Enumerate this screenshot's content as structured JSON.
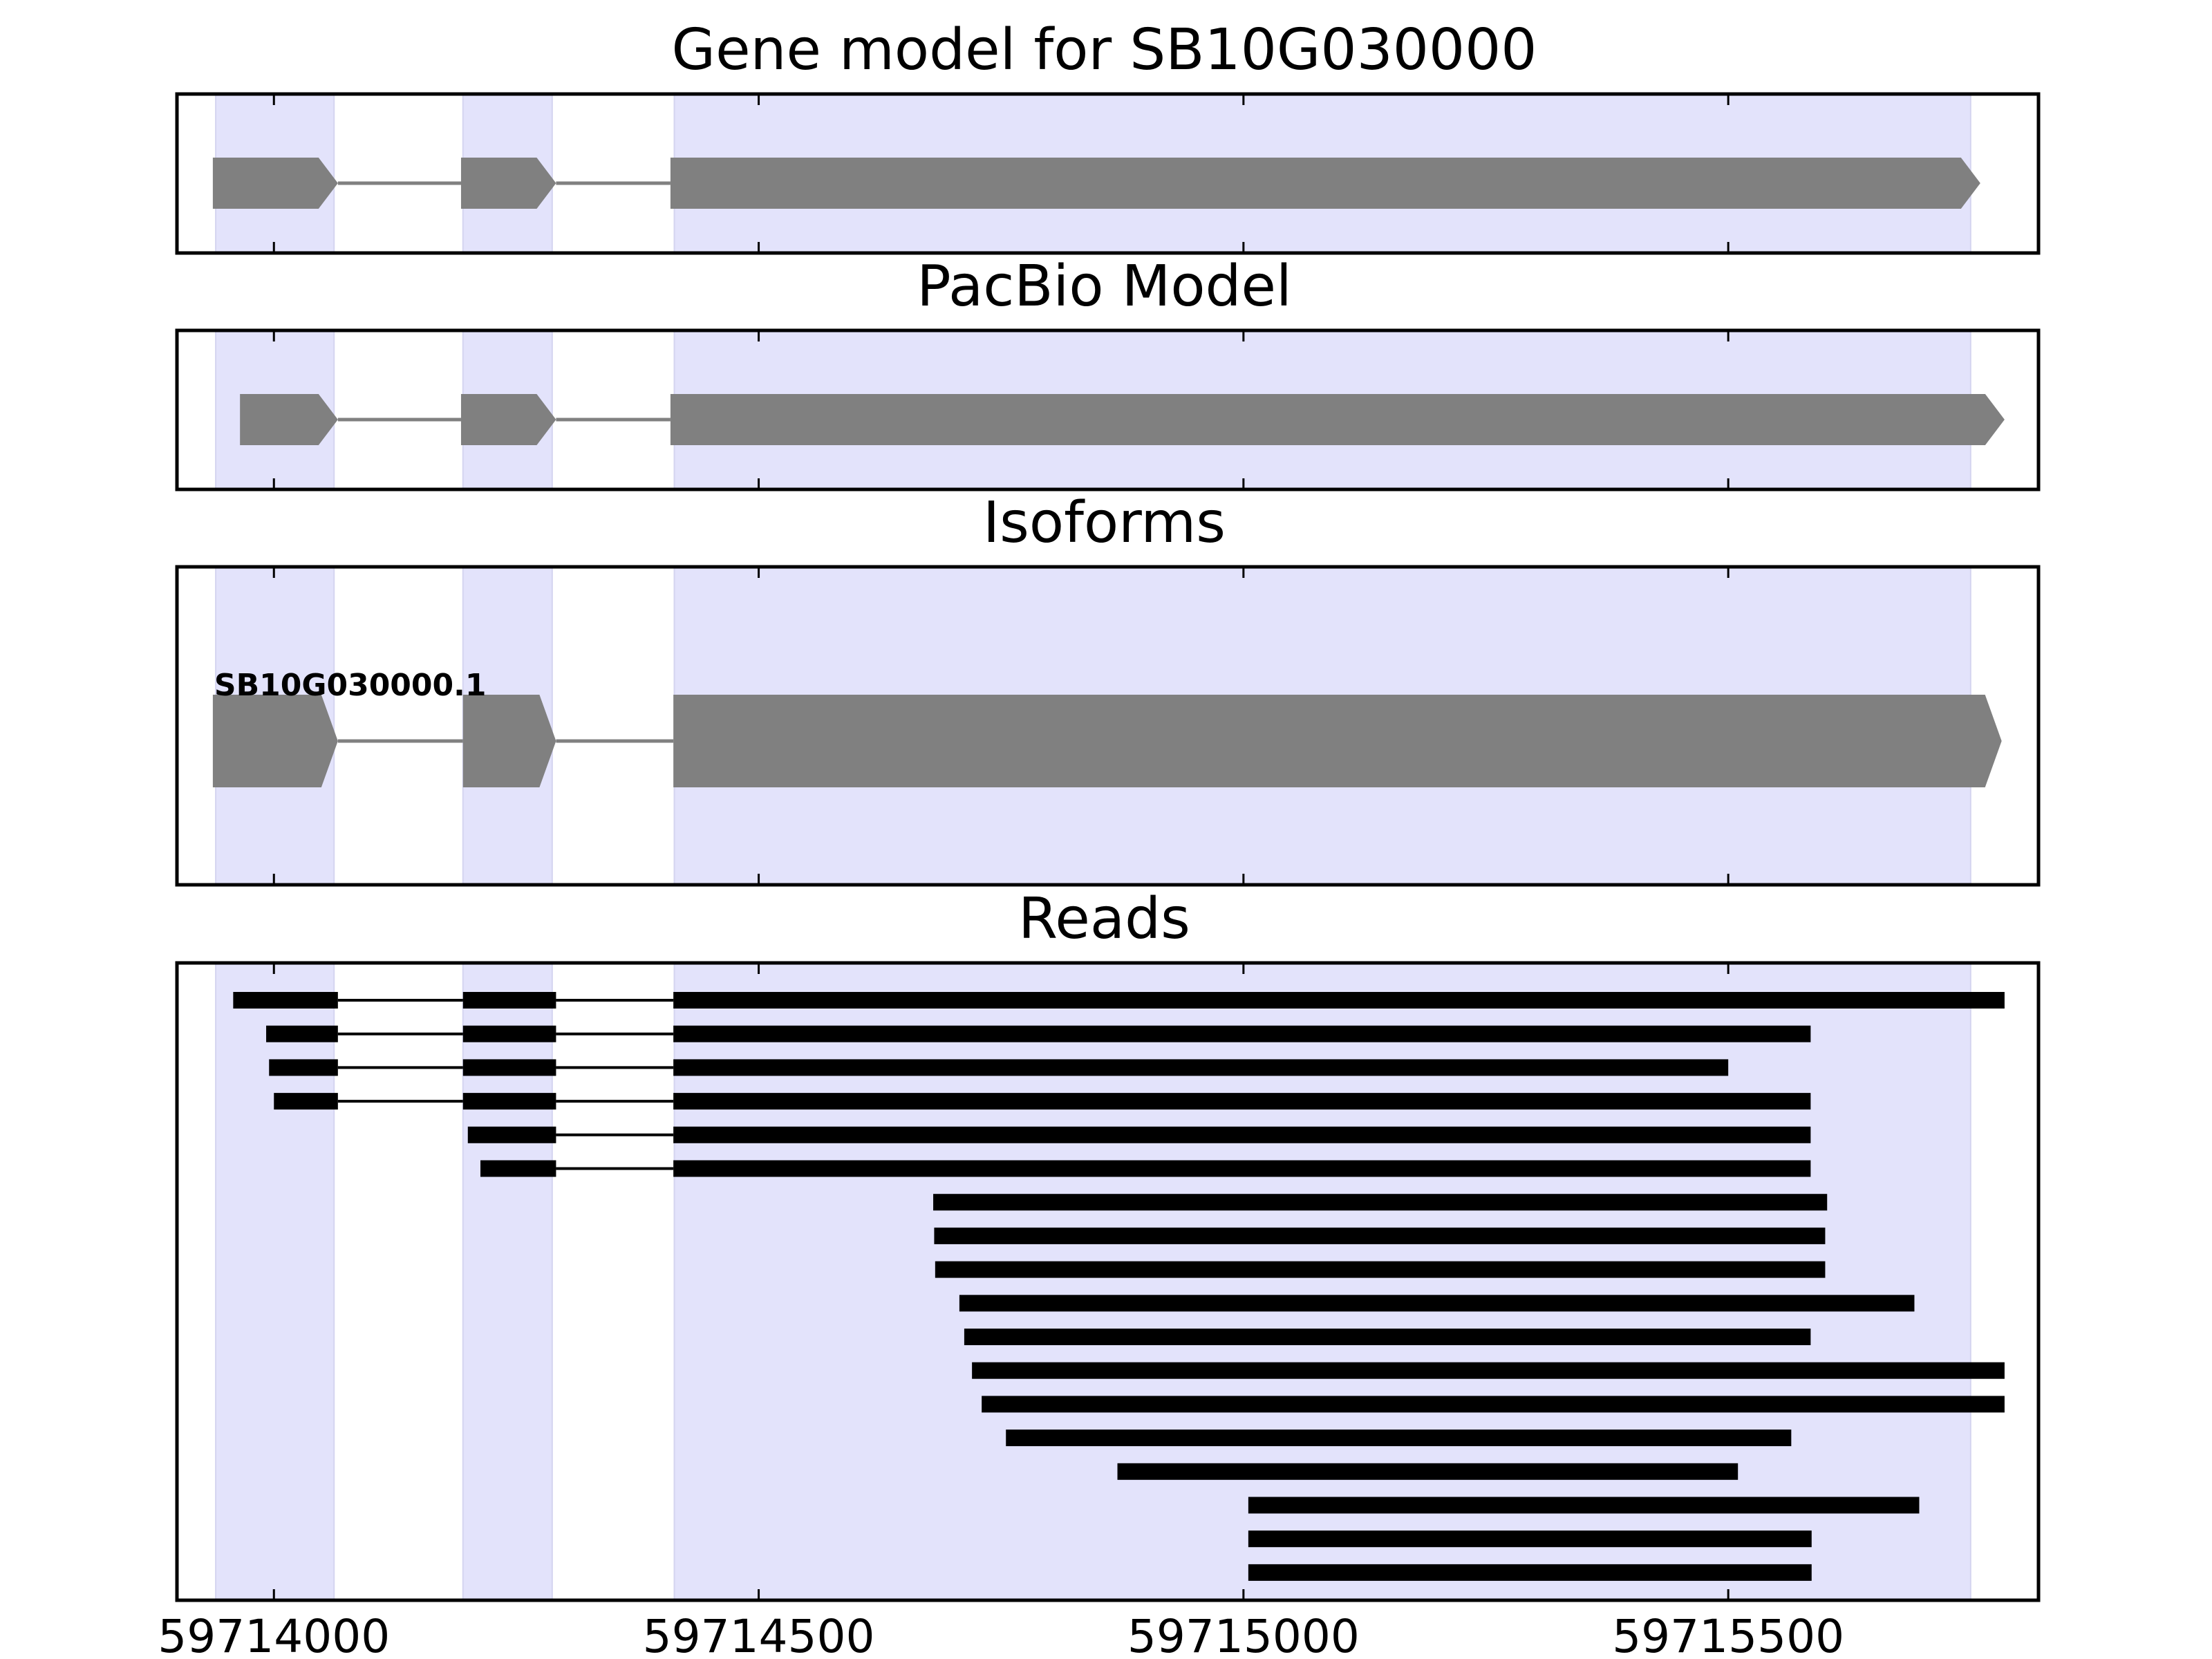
{
  "chart_data": {
    "type": "gene_track",
    "title": "Gene model for SB10G030000",
    "xlim": [
      59713900,
      59715820
    ],
    "xticks": [
      59714000,
      59714500,
      59715000,
      59715500
    ],
    "xtick_labels": [
      "59714000",
      "59714500",
      "59715000",
      "59715500"
    ],
    "highlight_color": "#e3e3fb",
    "feature_color": "#808080",
    "read_color": "#000000",
    "highlight_regions": [
      [
        59713940,
        59714062
      ],
      [
        59714195,
        59714287
      ],
      [
        59714413,
        59715750
      ]
    ],
    "panels": [
      {
        "id": "gene-model",
        "title": "Gene model for SB10G030000",
        "strand": "+",
        "exons": [
          [
            59713937,
            59714066
          ],
          [
            59714193,
            59714291
          ],
          [
            59714409,
            59715760
          ]
        ]
      },
      {
        "id": "pacbio-model",
        "title": "PacBio Model",
        "strand": "+",
        "exons": [
          [
            59713965,
            59714066
          ],
          [
            59714193,
            59714291
          ],
          [
            59714409,
            59715785
          ]
        ]
      },
      {
        "id": "isoforms",
        "title": "Isoforms",
        "strand": "+",
        "isoform_label": "SB10G030000.1",
        "exons": [
          [
            59713937,
            59714066
          ],
          [
            59714195,
            59714291
          ],
          [
            59714412,
            59715782
          ]
        ]
      },
      {
        "id": "reads",
        "title": "Reads",
        "reads": [
          [
            [
              59713958,
              59714066
            ],
            [
              59714195,
              59714291
            ],
            [
              59714412,
              59715785
            ]
          ],
          [
            [
              59713992,
              59714066
            ],
            [
              59714195,
              59714291
            ],
            [
              59714412,
              59715585
            ]
          ],
          [
            [
              59713995,
              59714066
            ],
            [
              59714195,
              59714291
            ],
            [
              59714412,
              59715500
            ]
          ],
          [
            [
              59714000,
              59714066
            ],
            [
              59714195,
              59714291
            ],
            [
              59714412,
              59715585
            ]
          ],
          [
            [
              59714200,
              59714291
            ],
            [
              59714412,
              59715585
            ]
          ],
          [
            [
              59714213,
              59714291
            ],
            [
              59714412,
              59715585
            ]
          ],
          [
            [
              59714680,
              59715602
            ]
          ],
          [
            [
              59714681,
              59715600
            ]
          ],
          [
            [
              59714682,
              59715600
            ]
          ],
          [
            [
              59714707,
              59715692
            ]
          ],
          [
            [
              59714712,
              59715585
            ]
          ],
          [
            [
              59714720,
              59715785
            ]
          ],
          [
            [
              59714730,
              59715785
            ]
          ],
          [
            [
              59714755,
              59715565
            ]
          ],
          [
            [
              59714870,
              59715510
            ]
          ],
          [
            [
              59715005,
              59715697
            ]
          ],
          [
            [
              59715005,
              59715586
            ]
          ],
          [
            [
              59715005,
              59715586
            ]
          ]
        ]
      }
    ]
  }
}
